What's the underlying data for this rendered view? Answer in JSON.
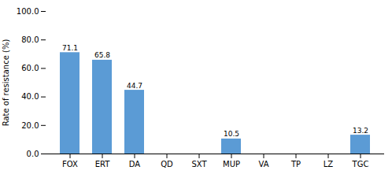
{
  "chart_data": {
    "type": "bar",
    "categories": [
      "FOX",
      "ERT",
      "DA",
      "QD",
      "SXT",
      "MUP",
      "VA",
      "TP",
      "LZ",
      "TGC"
    ],
    "values": [
      71.1,
      65.8,
      44.7,
      0.0,
      0.0,
      10.5,
      0.0,
      0.0,
      0.0,
      13.2
    ],
    "value_labels": [
      "71.1",
      "65.8",
      "44.7",
      null,
      null,
      "10.5",
      null,
      null,
      null,
      "13.2"
    ],
    "data_labels": true,
    "color": "#5b9bd5",
    "ylabel": "Rate of resistance (%)",
    "ylim": [
      0,
      100
    ],
    "yticks": [
      {
        "value": 0,
        "label": "0.0"
      },
      {
        "value": 20,
        "label": "20.0"
      },
      {
        "value": 40,
        "label": "40.0"
      },
      {
        "value": 60,
        "label": "60.0"
      },
      {
        "value": 80,
        "label": "80.0"
      },
      {
        "value": 100,
        "label": "100.0"
      }
    ],
    "grid": false
  }
}
